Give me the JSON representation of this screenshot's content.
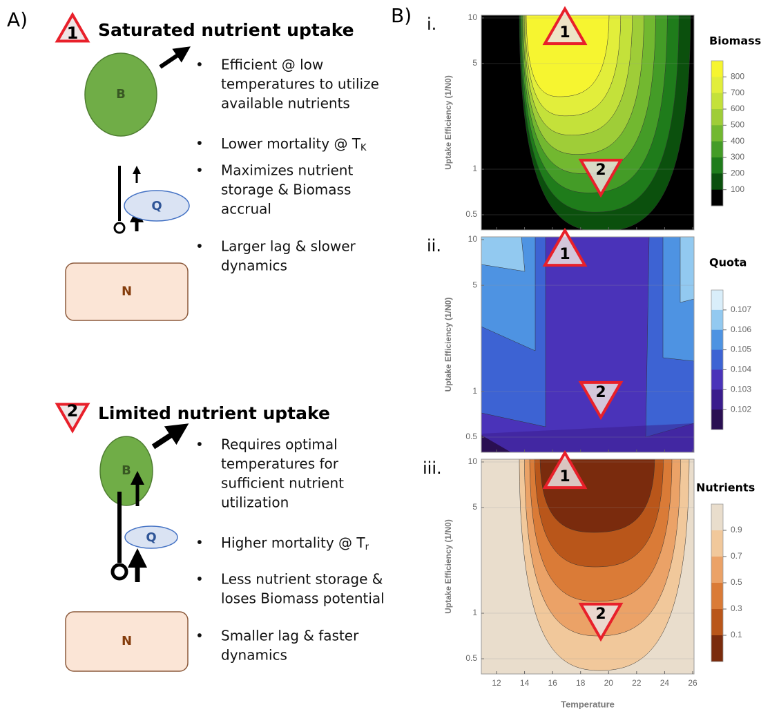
{
  "panel_a": {
    "label": "A)",
    "blocks": [
      {
        "marker": "1",
        "title": "Saturated nutrient uptake",
        "nodes": [
          "B",
          "Q",
          "N"
        ],
        "bullets": [
          [
            "Efficient @ low",
            "temperatures to utilize",
            "available nutrients"
          ],
          [
            {
              "text": "Lower mortality @ T",
              "sub": "K"
            }
          ],
          [
            "Maximizes nutrient",
            "storage & Biomass",
            "accrual"
          ],
          [
            "Larger lag & slower",
            "dynamics"
          ]
        ]
      },
      {
        "marker": "2",
        "title": "Limited nutrient uptake",
        "nodes": [
          "B",
          "Q",
          "N"
        ],
        "bullets": [
          [
            "Requires optimal",
            "temperatures for",
            "sufficient nutrient",
            "utilization"
          ],
          [
            {
              "text": "Higher mortality @ T",
              "sub": "r"
            }
          ],
          [
            "Less nutrient storage &",
            "loses Biomass potential"
          ],
          [
            "Smaller lag & faster",
            "dynamics"
          ]
        ]
      }
    ]
  },
  "panel_b": {
    "label": "B)",
    "markers": [
      "1",
      "2"
    ],
    "x_label": "Temperature",
    "y_label": "Uptake Efficiency (1/N0)",
    "xticks": [
      12,
      14,
      16,
      18,
      20,
      22,
      24,
      26
    ],
    "yticks": [
      10,
      5,
      1,
      0.5
    ],
    "plots": [
      {
        "label": "i.",
        "colorbar_title": "Biomass",
        "colorbar_ticks": [
          800,
          700,
          600,
          500,
          400,
          300,
          200,
          100
        ]
      },
      {
        "label": "ii.",
        "colorbar_title": "Quota",
        "colorbar_ticks": [
          0.107,
          0.106,
          0.105,
          0.104,
          0.103,
          0.102
        ]
      },
      {
        "label": "iii.",
        "colorbar_title": "Nutrients",
        "colorbar_ticks": [
          0.9,
          0.7,
          0.5,
          0.3,
          0.1
        ]
      }
    ]
  }
}
